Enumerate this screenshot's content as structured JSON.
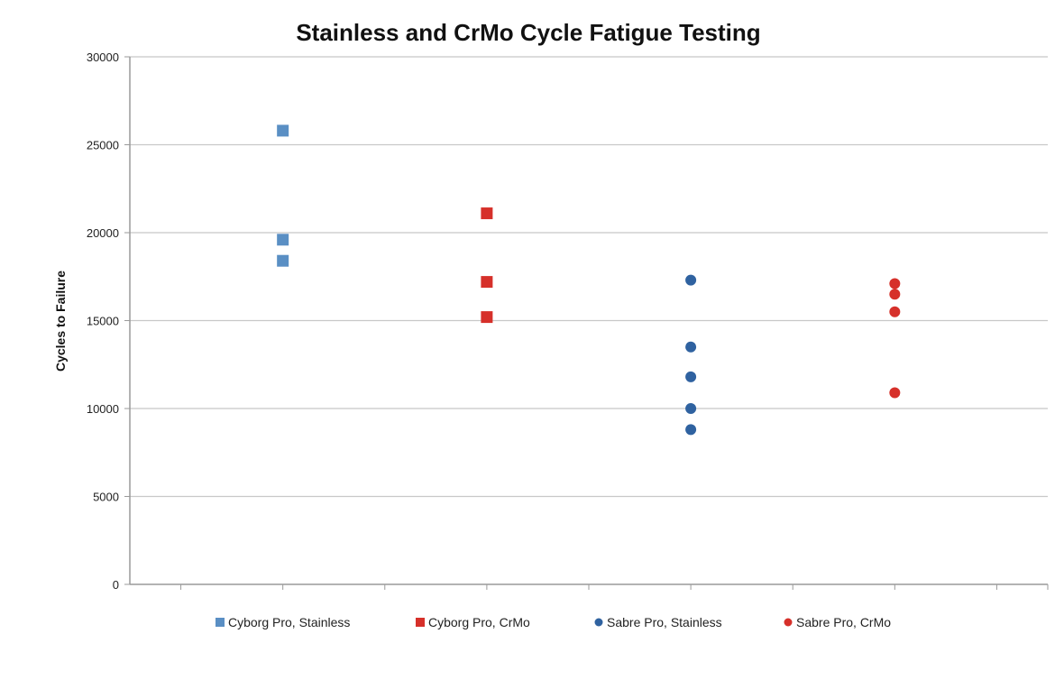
{
  "chart_data": {
    "type": "scatter",
    "title": "Stainless and CrMo Cycle Fatigue Testing",
    "xlabel": "",
    "ylabel": "Cycles to Failure",
    "ylim": [
      0,
      30000
    ],
    "yticks": [
      0,
      5000,
      10000,
      15000,
      20000,
      25000,
      30000
    ],
    "xlim": [
      0.5,
      9.5
    ],
    "grid": true,
    "legend_position": "bottom",
    "series": [
      {
        "name": "Cyborg Pro, Stainless",
        "marker": "square",
        "color": "#5a8fc4",
        "points": [
          {
            "x": 2,
            "y": 25800
          },
          {
            "x": 2,
            "y": 19600
          },
          {
            "x": 2,
            "y": 18400
          }
        ]
      },
      {
        "name": "Cyborg Pro, CrMo",
        "marker": "square",
        "color": "#d6302a",
        "points": [
          {
            "x": 4,
            "y": 21100
          },
          {
            "x": 4,
            "y": 17200
          },
          {
            "x": 4,
            "y": 15200
          }
        ]
      },
      {
        "name": "Sabre Pro, Stainless",
        "marker": "circle",
        "color": "#2f62a0",
        "points": [
          {
            "x": 6,
            "y": 17300
          },
          {
            "x": 6,
            "y": 13500
          },
          {
            "x": 6,
            "y": 11800
          },
          {
            "x": 6,
            "y": 10000
          },
          {
            "x": 6,
            "y": 8800
          }
        ]
      },
      {
        "name": "Sabre Pro, CrMo",
        "marker": "circle",
        "color": "#d6302a",
        "points": [
          {
            "x": 8,
            "y": 17100
          },
          {
            "x": 8,
            "y": 16500
          },
          {
            "x": 8,
            "y": 15500
          },
          {
            "x": 8,
            "y": 10900
          }
        ]
      }
    ]
  }
}
